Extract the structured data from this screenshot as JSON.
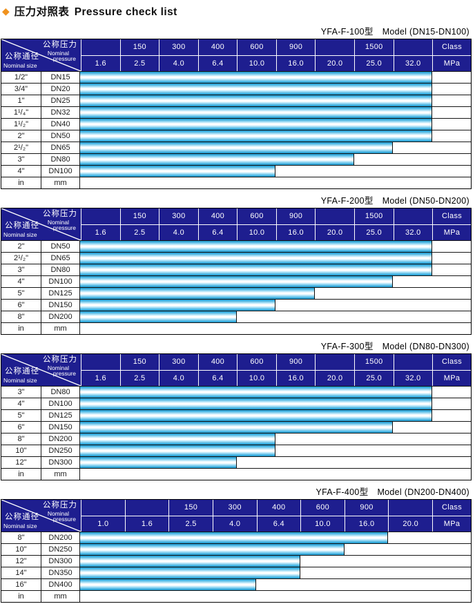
{
  "title": {
    "diamond_icon": "◆",
    "zh": "压力对照表",
    "en": "Pressure check list"
  },
  "corner_header": {
    "pressure_zh": "公称压力",
    "pressure_en_line1": "Nominal",
    "pressure_en_line2": "pressure",
    "size_zh": "公称通径",
    "size_en": "Nominal size"
  },
  "colors": {
    "header_navy": "#1e1e8f",
    "bar_cyan": "#29a7db",
    "bar_highlight": "#ffffff",
    "diamond_orange": "#f0921e",
    "grid_line": "#151515"
  },
  "tables": [
    {
      "model": "YFA-F-100型",
      "range": "Model (DN15-DN100)",
      "value_columns": 9,
      "class_labels": [
        "",
        "150",
        "300",
        "400",
        "600",
        "900",
        "",
        "1500",
        "",
        "Class"
      ],
      "mpa_labels": [
        "1.6",
        "2.5",
        "4.0",
        "6.4",
        "10.0",
        "16.0",
        "20.0",
        "25.0",
        "32.0",
        "MPa"
      ],
      "rows": [
        {
          "inch": "1/2\"",
          "dn": "DN15",
          "bar_span_cols": 9,
          "bar_to_mpa": "32.0"
        },
        {
          "inch": "3/4\"",
          "dn": "DN20",
          "bar_span_cols": 9,
          "bar_to_mpa": "32.0"
        },
        {
          "inch": "1\"",
          "dn": "DN25",
          "bar_span_cols": 9,
          "bar_to_mpa": "32.0"
        },
        {
          "inch": "1¹/₄\"",
          "dn": "DN32",
          "bar_span_cols": 9,
          "bar_to_mpa": "32.0"
        },
        {
          "inch": "1¹/₂\"",
          "dn": "DN40",
          "bar_span_cols": 9,
          "bar_to_mpa": "32.0"
        },
        {
          "inch": "2\"",
          "dn": "DN50",
          "bar_span_cols": 9,
          "bar_to_mpa": "32.0"
        },
        {
          "inch": "2¹/₂\"",
          "dn": "DN65",
          "bar_span_cols": 8,
          "bar_to_mpa": "25.0"
        },
        {
          "inch": "3\"",
          "dn": "DN80",
          "bar_span_cols": 7,
          "bar_to_mpa": "20.0"
        },
        {
          "inch": "4\"",
          "dn": "DN100",
          "bar_span_cols": 5,
          "bar_to_mpa": "10.0"
        },
        {
          "inch": "in",
          "dn": "mm",
          "bar_span_cols": 0,
          "bar_to_mpa": ""
        }
      ]
    },
    {
      "model": "YFA-F-200型",
      "range": "Model (DN50-DN200)",
      "value_columns": 9,
      "class_labels": [
        "",
        "150",
        "300",
        "400",
        "600",
        "900",
        "",
        "1500",
        "",
        "Class"
      ],
      "mpa_labels": [
        "1.6",
        "2.5",
        "4.0",
        "6.4",
        "10.0",
        "16.0",
        "20.0",
        "25.0",
        "32.0",
        "MPa"
      ],
      "rows": [
        {
          "inch": "2\"",
          "dn": "DN50",
          "bar_span_cols": 9,
          "bar_to_mpa": "32.0"
        },
        {
          "inch": "2¹/₂\"",
          "dn": "DN65",
          "bar_span_cols": 9,
          "bar_to_mpa": "32.0"
        },
        {
          "inch": "3\"",
          "dn": "DN80",
          "bar_span_cols": 9,
          "bar_to_mpa": "32.0"
        },
        {
          "inch": "4\"",
          "dn": "DN100",
          "bar_span_cols": 8,
          "bar_to_mpa": "25.0"
        },
        {
          "inch": "5\"",
          "dn": "DN125",
          "bar_span_cols": 6,
          "bar_to_mpa": "16.0"
        },
        {
          "inch": "6\"",
          "dn": "DN150",
          "bar_span_cols": 5,
          "bar_to_mpa": "10.0"
        },
        {
          "inch": "8\"",
          "dn": "DN200",
          "bar_span_cols": 4,
          "bar_to_mpa": "6.4"
        },
        {
          "inch": "in",
          "dn": "mm",
          "bar_span_cols": 0,
          "bar_to_mpa": ""
        }
      ]
    },
    {
      "model": "YFA-F-300型",
      "range": "Model (DN80-DN300)",
      "value_columns": 9,
      "class_labels": [
        "",
        "150",
        "300",
        "400",
        "600",
        "900",
        "",
        "1500",
        "",
        "Class"
      ],
      "mpa_labels": [
        "1.6",
        "2.5",
        "4.0",
        "6.4",
        "10.0",
        "16.0",
        "20.0",
        "25.0",
        "32.0",
        "MPa"
      ],
      "rows": [
        {
          "inch": "3\"",
          "dn": "DN80",
          "bar_span_cols": 9,
          "bar_to_mpa": "32.0"
        },
        {
          "inch": "4\"",
          "dn": "DN100",
          "bar_span_cols": 9,
          "bar_to_mpa": "32.0"
        },
        {
          "inch": "5\"",
          "dn": "DN125",
          "bar_span_cols": 9,
          "bar_to_mpa": "32.0"
        },
        {
          "inch": "6\"",
          "dn": "DN150",
          "bar_span_cols": 8,
          "bar_to_mpa": "25.0"
        },
        {
          "inch": "8\"",
          "dn": "DN200",
          "bar_span_cols": 5,
          "bar_to_mpa": "10.0"
        },
        {
          "inch": "10\"",
          "dn": "DN250",
          "bar_span_cols": 5,
          "bar_to_mpa": "10.0"
        },
        {
          "inch": "12\"",
          "dn": "DN300",
          "bar_span_cols": 4,
          "bar_to_mpa": "6.4"
        },
        {
          "inch": "in",
          "dn": "mm",
          "bar_span_cols": 0,
          "bar_to_mpa": ""
        }
      ]
    },
    {
      "model": "YFA-F-400型",
      "range": "Model (DN200-DN400)",
      "value_columns": 8,
      "class_labels": [
        "",
        "",
        "150",
        "300",
        "400",
        "600",
        "900",
        "",
        "Class"
      ],
      "mpa_labels": [
        "1.0",
        "1.6",
        "2.5",
        "4.0",
        "6.4",
        "10.0",
        "16.0",
        "20.0",
        "MPa"
      ],
      "rows": [
        {
          "inch": "8\"",
          "dn": "DN200",
          "bar_span_cols": 7,
          "bar_to_mpa": "16.0"
        },
        {
          "inch": "10\"",
          "dn": "DN250",
          "bar_span_cols": 6,
          "bar_to_mpa": "10.0"
        },
        {
          "inch": "12\"",
          "dn": "DN300",
          "bar_span_cols": 5,
          "bar_to_mpa": "6.4"
        },
        {
          "inch": "14\"",
          "dn": "DN350",
          "bar_span_cols": 5,
          "bar_to_mpa": "6.4"
        },
        {
          "inch": "16\"",
          "dn": "DN400",
          "bar_span_cols": 4,
          "bar_to_mpa": "4.0"
        },
        {
          "inch": "in",
          "dn": "mm",
          "bar_span_cols": 0,
          "bar_to_mpa": ""
        }
      ]
    }
  ]
}
